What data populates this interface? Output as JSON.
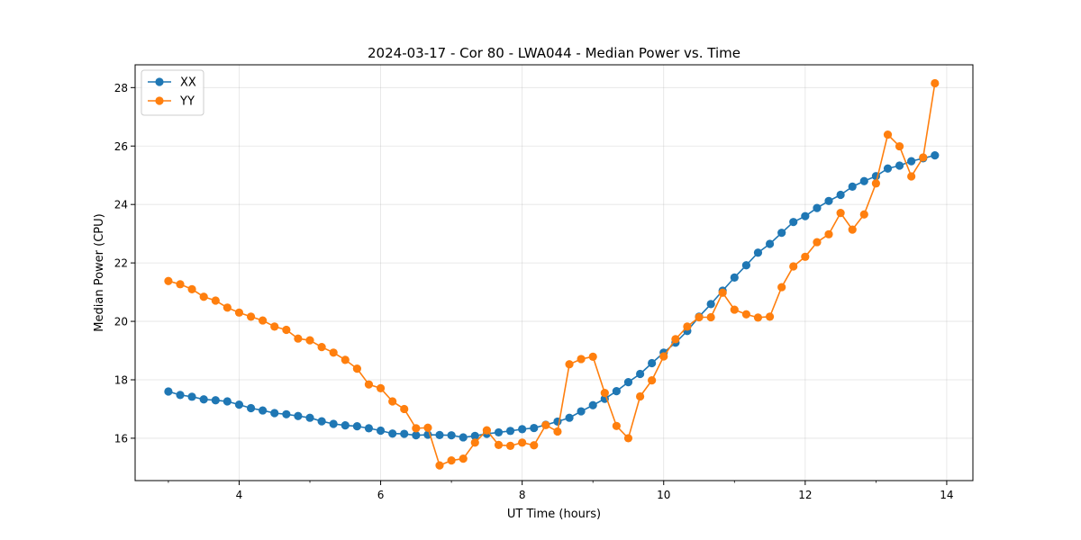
{
  "chart_data": {
    "type": "line",
    "title": "2024-03-17 - Cor 80 - LWA044 - Median Power vs. Time",
    "xlabel": "UT Time (hours)",
    "ylabel": "Median Power (CPU)",
    "xlim": [
      2.53,
      14.37
    ],
    "ylim": [
      14.55,
      28.78
    ],
    "xticks": [
      4,
      6,
      8,
      10,
      12,
      14
    ],
    "xtick_labels": [
      "4",
      "6",
      "8",
      "10",
      "12",
      "14"
    ],
    "yticks": [
      16,
      18,
      20,
      22,
      24,
      26,
      28
    ],
    "ytick_labels": [
      "16",
      "18",
      "20",
      "22",
      "24",
      "26",
      "28"
    ],
    "grid": true,
    "legend_position": "top-left",
    "x": [
      3.0,
      3.167,
      3.333,
      3.5,
      3.667,
      3.833,
      4.0,
      4.167,
      4.333,
      4.5,
      4.667,
      4.833,
      5.0,
      5.167,
      5.333,
      5.5,
      5.667,
      5.833,
      6.0,
      6.167,
      6.333,
      6.5,
      6.667,
      6.833,
      7.0,
      7.167,
      7.333,
      7.5,
      7.667,
      7.833,
      8.0,
      8.167,
      8.333,
      8.5,
      8.667,
      8.833,
      9.0,
      9.167,
      9.333,
      9.5,
      9.667,
      9.833,
      10.0,
      10.167,
      10.333,
      10.5,
      10.667,
      10.833,
      11.0,
      11.167,
      11.333,
      11.5,
      11.667,
      11.833,
      12.0,
      12.167,
      12.333,
      12.5,
      12.667,
      12.833,
      13.0,
      13.167,
      13.333,
      13.5,
      13.667,
      13.833
    ],
    "series": [
      {
        "name": "XX",
        "color": "#1f77b4",
        "values": [
          17.6,
          17.48,
          17.42,
          17.33,
          17.3,
          17.26,
          17.15,
          17.03,
          16.95,
          16.86,
          16.82,
          16.76,
          16.7,
          16.58,
          16.49,
          16.44,
          16.41,
          16.34,
          16.26,
          16.16,
          16.15,
          16.1,
          16.12,
          16.11,
          16.1,
          16.03,
          16.08,
          16.15,
          16.2,
          16.25,
          16.31,
          16.35,
          16.46,
          16.57,
          16.7,
          16.92,
          17.13,
          17.35,
          17.61,
          17.92,
          18.2,
          18.57,
          18.93,
          19.27,
          19.67,
          20.16,
          20.59,
          21.05,
          21.5,
          21.92,
          22.35,
          22.65,
          23.03,
          23.4,
          23.6,
          23.88,
          24.12,
          24.33,
          24.61,
          24.8,
          24.97,
          25.23,
          25.33,
          25.48,
          25.58,
          25.68
        ]
      },
      {
        "name": "YY",
        "color": "#ff7f0e",
        "values": [
          21.38,
          21.27,
          21.1,
          20.84,
          20.71,
          20.47,
          20.3,
          20.16,
          20.03,
          19.82,
          19.71,
          19.41,
          19.35,
          19.12,
          18.93,
          18.68,
          18.38,
          17.84,
          17.71,
          17.26,
          17.0,
          16.34,
          16.36,
          15.07,
          15.24,
          15.3,
          15.85,
          16.27,
          15.77,
          15.74,
          15.85,
          15.76,
          16.45,
          16.23,
          18.53,
          18.71,
          18.79,
          17.55,
          16.42,
          16.0,
          17.43,
          17.98,
          18.8,
          19.39,
          19.82,
          20.14,
          20.14,
          20.98,
          20.4,
          20.24,
          20.13,
          20.16,
          21.17,
          21.88,
          22.21,
          22.71,
          22.98,
          23.71,
          23.14,
          23.66,
          24.72,
          26.39,
          25.99,
          24.96,
          25.61,
          28.15
        ]
      }
    ]
  }
}
